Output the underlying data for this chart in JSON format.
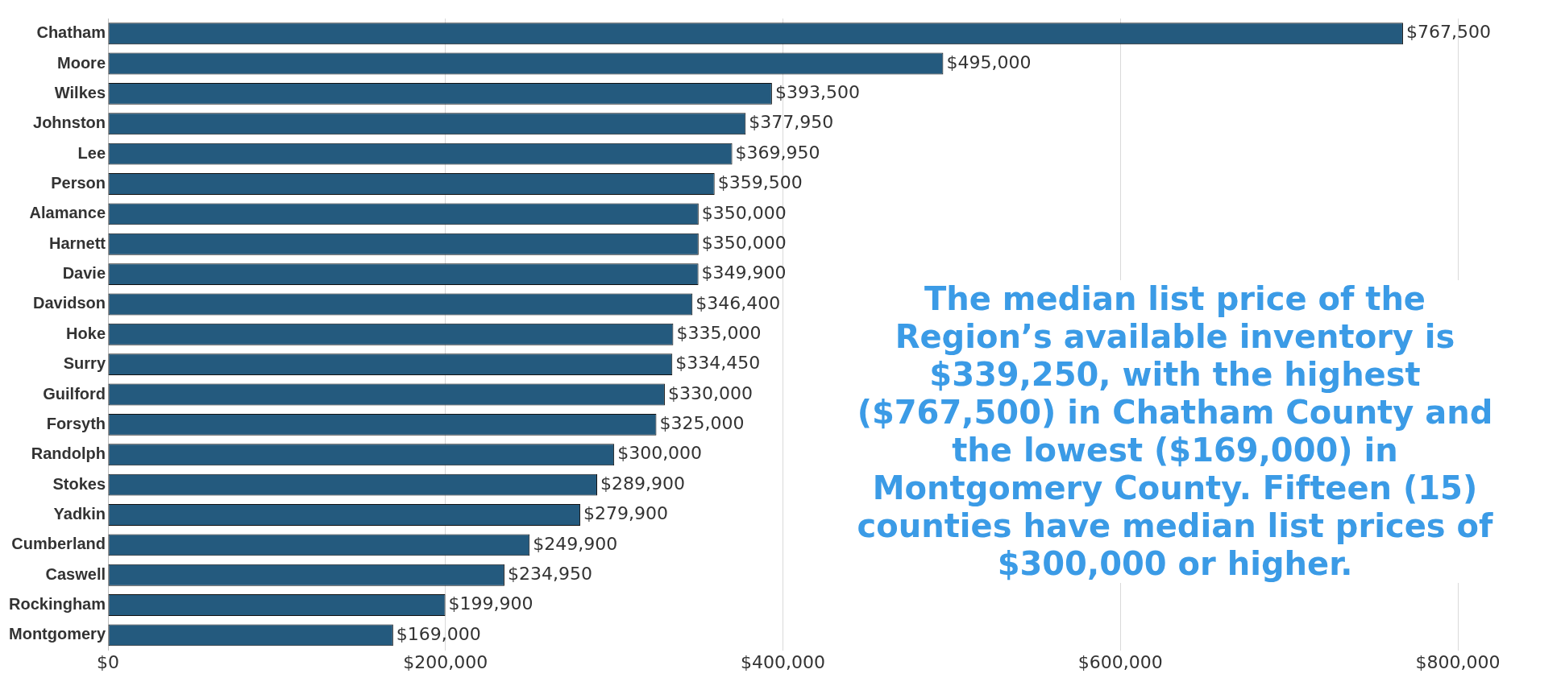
{
  "chart_data": {
    "type": "bar",
    "orientation": "horizontal",
    "categories": [
      "Chatham",
      "Moore",
      "Wilkes",
      "Johnston",
      "Lee",
      "Person",
      "Alamance",
      "Harnett",
      "Davie",
      "Davidson",
      "Hoke",
      "Surry",
      "Guilford",
      "Forsyth",
      "Randolph",
      "Stokes",
      "Yadkin",
      "Cumberland",
      "Caswell",
      "Rockingham",
      "Montgomery"
    ],
    "values": [
      767500,
      495000,
      393500,
      377950,
      369950,
      359500,
      350000,
      350000,
      349900,
      346400,
      335000,
      334450,
      330000,
      325000,
      300000,
      289900,
      279900,
      249900,
      234950,
      199900,
      169000
    ],
    "value_labels": [
      "$767,500",
      "$495,000",
      "$393,500",
      "$377,950",
      "$369,950",
      "$359,500",
      "$350,000",
      "$350,000",
      "$349,900",
      "$346,400",
      "$335,000",
      "$334,450",
      "$330,000",
      "$325,000",
      "$300,000",
      "$289,900",
      "$279,900",
      "$249,900",
      "$234,950",
      "$199,900",
      "$169,000"
    ],
    "color": "#245a7e",
    "xlim": [
      0,
      800000
    ],
    "xticks": [
      {
        "value": 0,
        "label": "$0"
      },
      {
        "value": 200000,
        "label": "$200,000"
      },
      {
        "value": 400000,
        "label": "$400,000"
      },
      {
        "value": 600000,
        "label": "$600,000"
      },
      {
        "value": 800000,
        "label": "$800,000"
      }
    ],
    "grid": "x",
    "legend": false,
    "annotations": [
      "The median list price of the Region’s available inventory is $339,250, with the highest ($767,500) in Chatham County and the lowest ($169,000) in Montgomery County.  Fifteen (15) counties have median list prices of $300,000 or higher."
    ]
  }
}
